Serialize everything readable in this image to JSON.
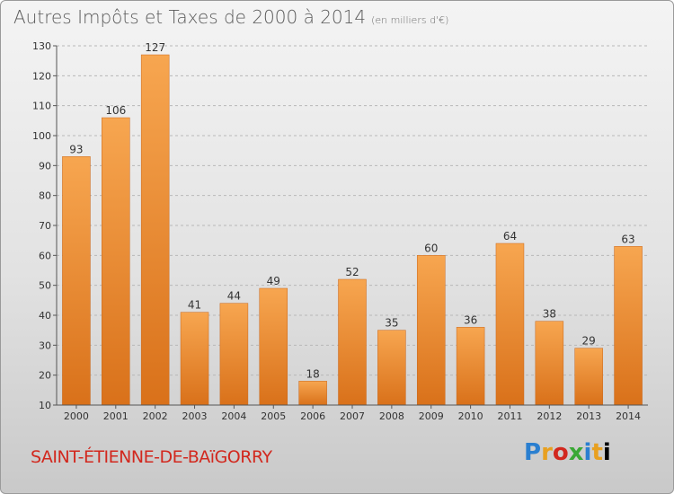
{
  "chart_data": {
    "type": "bar",
    "title": "Autres Impôts et Taxes de 2000 à 2014",
    "subtitle": "(en milliers d'€)",
    "categories": [
      "2000",
      "2001",
      "2002",
      "2003",
      "2004",
      "2005",
      "2006",
      "2007",
      "2008",
      "2009",
      "2010",
      "2011",
      "2012",
      "2013",
      "2014"
    ],
    "values": [
      93,
      106,
      127,
      41,
      44,
      49,
      18,
      52,
      35,
      60,
      36,
      64,
      38,
      29,
      63
    ],
    "ylim": [
      10,
      130
    ],
    "yticks": [
      10,
      20,
      30,
      40,
      50,
      60,
      70,
      80,
      90,
      100,
      110,
      120,
      130
    ],
    "grid": true,
    "bar_color": "#f08c28"
  },
  "footer": {
    "commune": "SAINT-ÉTIENNE-DE-BAïGORRY",
    "logo_letters": [
      "P",
      "r",
      "o",
      "x",
      "i",
      "t",
      "i"
    ]
  }
}
